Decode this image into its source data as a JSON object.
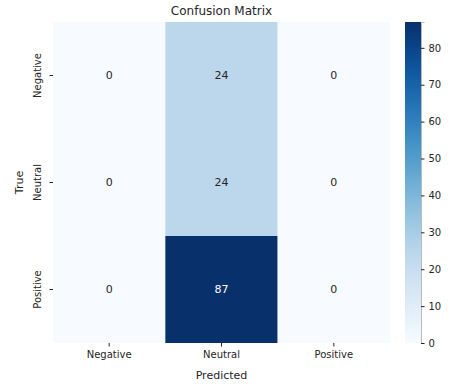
{
  "chart_data": {
    "type": "heatmap",
    "title": "Confusion Matrix",
    "x_label": "Predicted",
    "y_label": "True",
    "x_categories": [
      "Negative",
      "Neutral",
      "Positive"
    ],
    "y_categories": [
      "Negative",
      "Neutral",
      "Positive"
    ],
    "cells": [
      [
        0,
        24,
        0
      ],
      [
        0,
        24,
        0
      ],
      [
        0,
        87,
        0
      ]
    ],
    "color": "Blues",
    "data_labels": true,
    "colorbar_range": [
      0,
      87
    ],
    "colorbar_ticks": [
      0,
      10,
      20,
      30,
      40,
      50,
      60,
      70,
      80
    ]
  }
}
